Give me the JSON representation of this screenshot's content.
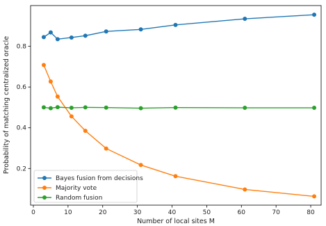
{
  "chart_data": {
    "type": "line",
    "xlabel": "Number of local sites M",
    "ylabel": "Probability of matching centralized oracle",
    "xlim": [
      -0.8,
      83.0
    ],
    "ylim": [
      0.02,
      1.0
    ],
    "xticks": [
      0,
      10,
      20,
      30,
      40,
      50,
      60,
      70,
      80
    ],
    "yticks": [
      0.2,
      0.4,
      0.6,
      0.8
    ],
    "ytick_labels": [
      "0.2",
      "0.4",
      "0.6",
      "0.8"
    ],
    "grid": false,
    "legend_position": "lower-left",
    "series": [
      {
        "name": "Bayes fusion from decisions",
        "color": "#1f77b4",
        "x": [
          3,
          5,
          7,
          11,
          15,
          21,
          31,
          41,
          61,
          81
        ],
        "y": [
          0.845,
          0.868,
          0.835,
          0.843,
          0.852,
          0.873,
          0.883,
          0.905,
          0.935,
          0.955
        ]
      },
      {
        "name": "Majority vote",
        "color": "#ff7f0e",
        "x": [
          3,
          5,
          7,
          11,
          15,
          21,
          31,
          41,
          61,
          81
        ],
        "y": [
          0.708,
          0.627,
          0.553,
          0.456,
          0.385,
          0.298,
          0.217,
          0.162,
          0.097,
          0.063
        ]
      },
      {
        "name": "Random fusion",
        "color": "#2ca02c",
        "x": [
          3,
          5,
          7,
          11,
          15,
          21,
          31,
          41,
          61,
          81
        ],
        "y": [
          0.5,
          0.496,
          0.501,
          0.498,
          0.5,
          0.499,
          0.496,
          0.499,
          0.498,
          0.498
        ]
      }
    ]
  }
}
